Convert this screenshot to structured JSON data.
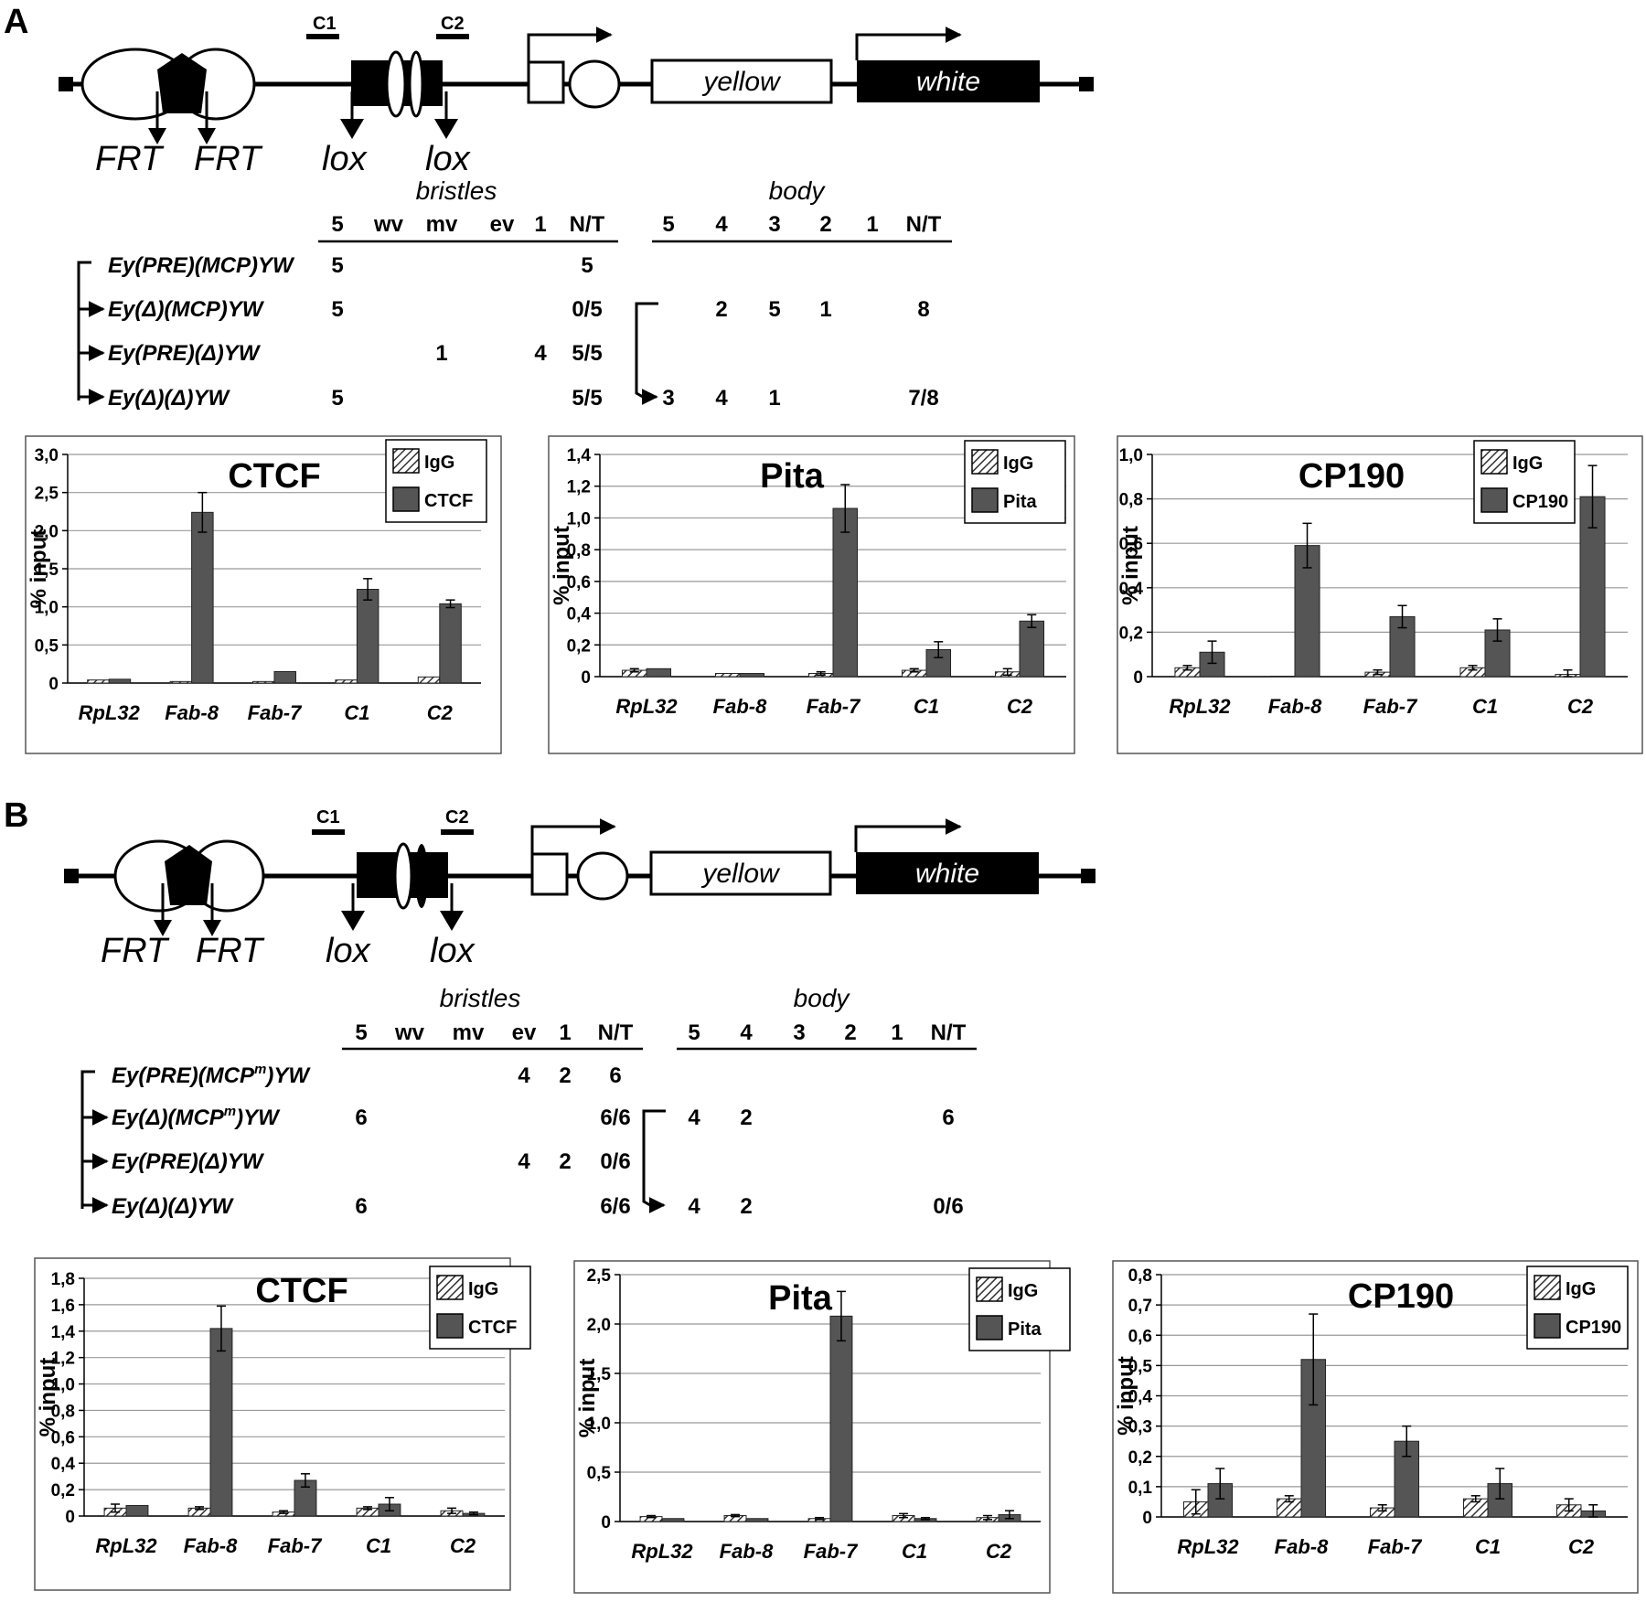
{
  "panels": [
    {
      "label": "A",
      "construct": {
        "fragments": [
          "C1",
          "C2"
        ],
        "genes": [
          "yellow",
          "white"
        ],
        "sites": [
          "FRT",
          "FRT",
          "lox",
          "lox"
        ]
      },
      "table": {
        "bristles_header": "bristles",
        "body_header": "body",
        "bristle_cols": [
          "5",
          "wv",
          "mv",
          "ev",
          "1",
          "N/T"
        ],
        "body_cols": [
          "5",
          "4",
          "3",
          "2",
          "1",
          "N/T"
        ],
        "rows": [
          {
            "name": "Ey(PRE)(MCP)YW",
            "cells": [
              {
                "col": 0,
                "v": "5"
              },
              {
                "col": 5,
                "v": "5"
              }
            ]
          },
          {
            "name": "Ey(Δ)(MCP)YW",
            "cells": [
              {
                "col": 0,
                "v": "5"
              },
              {
                "col": 5,
                "v": "0/5"
              },
              {
                "col": 7,
                "v": "2"
              },
              {
                "col": 8,
                "v": "5"
              },
              {
                "col": 9,
                "v": "1"
              },
              {
                "col": 11,
                "v": "8"
              }
            ]
          },
          {
            "name": "Ey(PRE)(Δ)YW",
            "cells": [
              {
                "col": 2,
                "v": "1"
              },
              {
                "col": 4,
                "v": "4"
              },
              {
                "col": 5,
                "v": "5/5"
              }
            ]
          },
          {
            "name": "Ey(Δ)(Δ)YW",
            "cells": [
              {
                "col": 0,
                "v": "5"
              },
              {
                "col": 5,
                "v": "5/5"
              },
              {
                "col": 6,
                "v": "3"
              },
              {
                "col": 7,
                "v": "4"
              },
              {
                "col": 8,
                "v": "1"
              },
              {
                "col": 11,
                "v": "7/8"
              }
            ]
          }
        ]
      },
      "charts": [
        {
          "chart_data": {
            "type": "bar",
            "title": "CTCF",
            "ylabel": "% input",
            "ylim": [
              0,
              3.0
            ],
            "yticks": [
              "0",
              "0,5",
              "1,0",
              "1,5",
              "2,0",
              "2,5",
              "3,0"
            ],
            "categories": [
              "RpL32",
              "Fab-8",
              "Fab-7",
              "C1",
              "C2"
            ],
            "series": [
              {
                "name": "IgG",
                "values": [
                  0.04,
                  0.02,
                  0.02,
                  0.04,
                  0.08
                ]
              },
              {
                "name": "CTCF",
                "values": [
                  0.05,
                  2.24,
                  0.15,
                  1.23,
                  1.04
                ],
                "errors": [
                  0,
                  0.26,
                  0,
                  0.14,
                  0.05
                ]
              }
            ]
          }
        },
        {
          "chart_data": {
            "type": "bar",
            "title": "Pita",
            "ylabel": "% input",
            "ylim": [
              0,
              1.4
            ],
            "yticks": [
              "0",
              "0,2",
              "0,4",
              "0,6",
              "0,8",
              "1,0",
              "1,2",
              "1,4"
            ],
            "categories": [
              "RpL32",
              "Fab-8",
              "Fab-7",
              "C1",
              "C2"
            ],
            "series": [
              {
                "name": "IgG",
                "values": [
                  0.04,
                  0.02,
                  0.02,
                  0.04,
                  0.03
                ],
                "errors": [
                  0.01,
                  0,
                  0.01,
                  0.01,
                  0.02
                ]
              },
              {
                "name": "Pita",
                "values": [
                  0.05,
                  0.02,
                  1.06,
                  0.17,
                  0.35
                ],
                "errors": [
                  0,
                  0,
                  0.15,
                  0.05,
                  0.04
                ]
              }
            ]
          }
        },
        {
          "chart_data": {
            "type": "bar",
            "title": "CP190",
            "ylabel": "% input",
            "ylim": [
              0,
              1.0
            ],
            "yticks": [
              "0",
              "0,2",
              "0,4",
              "0,6",
              "0,8",
              "1,0"
            ],
            "categories": [
              "RpL32",
              "Fab-8",
              "Fab-7",
              "C1",
              "C2"
            ],
            "series": [
              {
                "name": "IgG",
                "values": [
                  0.04,
                  0.0,
                  0.02,
                  0.04,
                  0.01
                ],
                "errors": [
                  0.01,
                  0,
                  0.01,
                  0.01,
                  0.02
                ]
              },
              {
                "name": "CP190",
                "values": [
                  0.11,
                  0.59,
                  0.27,
                  0.21,
                  0.81
                ],
                "errors": [
                  0.05,
                  0.1,
                  0.05,
                  0.05,
                  0.14
                ]
              }
            ]
          }
        }
      ]
    },
    {
      "label": "B",
      "construct": {
        "fragments": [
          "C1",
          "C2"
        ],
        "genes": [
          "yellow",
          "white"
        ],
        "sites": [
          "FRT",
          "FRT",
          "lox",
          "lox"
        ]
      },
      "table": {
        "bristles_header": "bristles",
        "body_header": "body",
        "bristle_cols": [
          "5",
          "wv",
          "mv",
          "ev",
          "1",
          "N/T"
        ],
        "body_cols": [
          "5",
          "4",
          "3",
          "2",
          "1",
          "N/T"
        ],
        "rows": [
          {
            "name": "Ey(PRE)(MCP",
            "sup": "m",
            "suffix": ")YW",
            "cells": [
              {
                "col": 3,
                "v": "4"
              },
              {
                "col": 4,
                "v": "2"
              },
              {
                "col": 5,
                "v": "6"
              }
            ]
          },
          {
            "name": "Ey(Δ)(MCP",
            "sup": "m",
            "suffix": ")YW",
            "cells": [
              {
                "col": 0,
                "v": "6"
              },
              {
                "col": 5,
                "v": "6/6"
              },
              {
                "col": 6,
                "v": "4"
              },
              {
                "col": 7,
                "v": "2"
              },
              {
                "col": 11,
                "v": "6"
              }
            ]
          },
          {
            "name": "Ey(PRE)(Δ)YW",
            "cells": [
              {
                "col": 3,
                "v": "4"
              },
              {
                "col": 4,
                "v": "2"
              },
              {
                "col": 5,
                "v": "0/6"
              }
            ]
          },
          {
            "name": "Ey(Δ)(Δ)YW",
            "cells": [
              {
                "col": 0,
                "v": "6"
              },
              {
                "col": 5,
                "v": "6/6"
              },
              {
                "col": 6,
                "v": "4"
              },
              {
                "col": 7,
                "v": "2"
              },
              {
                "col": 11,
                "v": "0/6"
              }
            ]
          }
        ]
      },
      "charts": [
        {
          "chart_data": {
            "type": "bar",
            "title": "CTCF",
            "ylabel": "% input",
            "ylim": [
              0,
              1.8
            ],
            "yticks": [
              "0",
              "0,2",
              "0,4",
              "0,6",
              "0,8",
              "1,0",
              "1,2",
              "1,4",
              "1,6",
              "1,8"
            ],
            "categories": [
              "RpL32",
              "Fab-8",
              "Fab-7",
              "C1",
              "C2"
            ],
            "series": [
              {
                "name": "IgG",
                "values": [
                  0.06,
                  0.06,
                  0.03,
                  0.06,
                  0.04
                ],
                "errors": [
                  0.03,
                  0.01,
                  0.01,
                  0.01,
                  0.02
                ]
              },
              {
                "name": "CTCF",
                "values": [
                  0.08,
                  1.42,
                  0.27,
                  0.09,
                  0.02
                ],
                "errors": [
                  0,
                  0.17,
                  0.05,
                  0.05,
                  0.01
                ]
              }
            ]
          }
        },
        {
          "chart_data": {
            "type": "bar",
            "title": "Pita",
            "ylabel": "% input",
            "ylim": [
              0,
              2.5
            ],
            "yticks": [
              "0",
              "0,5",
              "1,0",
              "1,5",
              "2,0",
              "2,5"
            ],
            "categories": [
              "RpL32",
              "Fab-8",
              "Fab-7",
              "C1",
              "C2"
            ],
            "series": [
              {
                "name": "IgG",
                "values": [
                  0.05,
                  0.06,
                  0.03,
                  0.06,
                  0.04
                ],
                "errors": [
                  0.01,
                  0.01,
                  0.01,
                  0.02,
                  0.02
                ]
              },
              {
                "name": "Pita",
                "values": [
                  0.03,
                  0.03,
                  2.08,
                  0.03,
                  0.07
                ],
                "errors": [
                  0,
                  0,
                  0.25,
                  0.01,
                  0.04
                ]
              }
            ]
          }
        },
        {
          "chart_data": {
            "type": "bar",
            "title": "CP190",
            "ylabel": "% input",
            "ylim": [
              0,
              0.8
            ],
            "yticks": [
              "0",
              "0,1",
              "0,2",
              "0,3",
              "0,4",
              "0,5",
              "0,6",
              "0,7",
              "0,8"
            ],
            "categories": [
              "RpL32",
              "Fab-8",
              "Fab-7",
              "C1",
              "C2"
            ],
            "series": [
              {
                "name": "IgG",
                "values": [
                  0.05,
                  0.06,
                  0.03,
                  0.06,
                  0.04
                ],
                "errors": [
                  0.04,
                  0.01,
                  0.01,
                  0.01,
                  0.02
                ]
              },
              {
                "name": "CP190",
                "values": [
                  0.11,
                  0.52,
                  0.25,
                  0.11,
                  0.02
                ],
                "errors": [
                  0.05,
                  0.15,
                  0.05,
                  0.05,
                  0.02
                ]
              }
            ]
          }
        }
      ]
    }
  ]
}
